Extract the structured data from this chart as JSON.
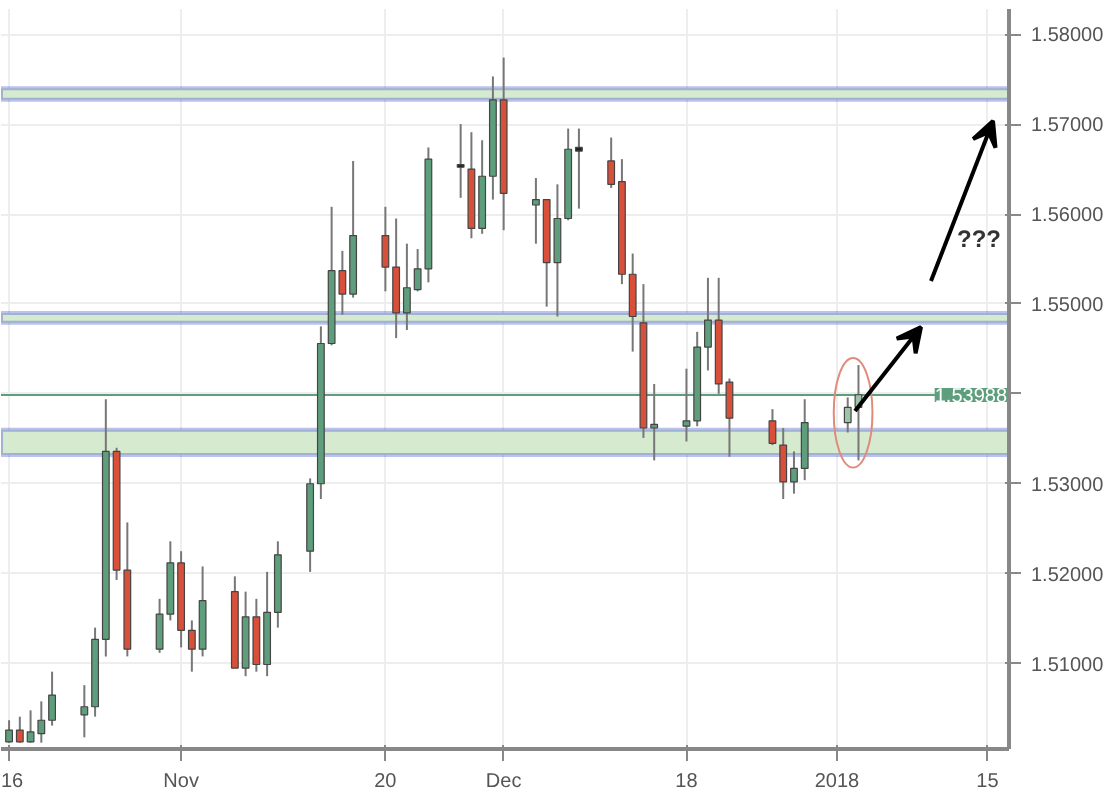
{
  "chart_data": {
    "type": "candlestick",
    "x": [
      "2017-10-16",
      "2017-10-17",
      "2017-10-18",
      "2017-10-19",
      "2017-10-20",
      "2017-10-23",
      "2017-10-24",
      "2017-10-25",
      "2017-10-26",
      "2017-10-27",
      "2017-10-30",
      "2017-10-31",
      "2017-11-01",
      "2017-11-02",
      "2017-11-03",
      "2017-11-06",
      "2017-11-07",
      "2017-11-08",
      "2017-11-09",
      "2017-11-10",
      "2017-11-13",
      "2017-11-14",
      "2017-11-15",
      "2017-11-16",
      "2017-11-17",
      "2017-11-20",
      "2017-11-21",
      "2017-11-22",
      "2017-11-23",
      "2017-11-24",
      "2017-11-27",
      "2017-11-28",
      "2017-11-29",
      "2017-11-30",
      "2017-12-01",
      "2017-12-04",
      "2017-12-05",
      "2017-12-06",
      "2017-12-07",
      "2017-12-08",
      "2017-12-11",
      "2017-12-12",
      "2017-12-13",
      "2017-12-14",
      "2017-12-15",
      "2017-12-18",
      "2017-12-19",
      "2017-12-20",
      "2017-12-21",
      "2017-12-22",
      "2017-12-26",
      "2017-12-27",
      "2017-12-28",
      "2017-12-29",
      "2018-01-02",
      "2018-01-03"
    ],
    "ohlc": [
      [
        1.5013,
        1.5037,
        1.5012,
        1.5026
      ],
      [
        1.5026,
        1.5041,
        1.5012,
        1.5013
      ],
      [
        1.5013,
        1.5048,
        1.5012,
        1.5024
      ],
      [
        1.5022,
        1.5058,
        1.5012,
        1.5037
      ],
      [
        1.5037,
        1.5091,
        1.5031,
        1.5065
      ],
      [
        1.5043,
        1.5076,
        1.5018,
        1.5052
      ],
      [
        1.5052,
        1.514,
        1.5041,
        1.5127
      ],
      [
        1.5127,
        1.5394,
        1.5108,
        1.5336
      ],
      [
        1.5336,
        1.534,
        1.5193,
        1.5204
      ],
      [
        1.5204,
        1.5257,
        1.5108,
        1.5116
      ],
      [
        1.5116,
        1.5172,
        1.5112,
        1.5155
      ],
      [
        1.5155,
        1.5236,
        1.5148,
        1.5212
      ],
      [
        1.5212,
        1.5225,
        1.5118,
        1.5137
      ],
      [
        1.5137,
        1.5148,
        1.5091,
        1.5116
      ],
      [
        1.5116,
        1.5208,
        1.5108,
        1.517
      ],
      [
        1.518,
        1.5197,
        1.5095,
        1.5095
      ],
      [
        1.5095,
        1.518,
        1.5086,
        1.5152
      ],
      [
        1.5152,
        1.5172,
        1.5091,
        1.5099
      ],
      [
        1.5099,
        1.5202,
        1.5086,
        1.5157
      ],
      [
        1.5157,
        1.5236,
        1.514,
        1.5221
      ],
      [
        1.5225,
        1.5306,
        1.5202,
        1.53
      ],
      [
        1.53,
        1.5475,
        1.5283,
        1.5456
      ],
      [
        1.5456,
        1.5608,
        1.5454,
        1.5537
      ],
      [
        1.5537,
        1.5559,
        1.5488,
        1.5511
      ],
      [
        1.5511,
        1.5659,
        1.5507,
        1.5576
      ],
      [
        1.5576,
        1.5608,
        1.5514,
        1.5541
      ],
      [
        1.5541,
        1.5595,
        1.5462,
        1.549
      ],
      [
        1.549,
        1.5567,
        1.5471,
        1.5518
      ],
      [
        1.5516,
        1.5561,
        1.5514,
        1.5539
      ],
      [
        1.5539,
        1.5674,
        1.5524,
        1.5661
      ],
      [
        1.5655,
        1.57,
        1.5618,
        1.5652
      ],
      [
        1.565,
        1.5691,
        1.5573,
        1.5584
      ],
      [
        1.5584,
        1.5682,
        1.5578,
        1.5642
      ],
      [
        1.5642,
        1.5753,
        1.5616,
        1.5727
      ],
      [
        1.5727,
        1.5774,
        1.5582,
        1.5623
      ],
      [
        1.561,
        1.564,
        1.5567,
        1.5616
      ],
      [
        1.5616,
        1.5616,
        1.5497,
        1.5546
      ],
      [
        1.5546,
        1.5633,
        1.5486,
        1.5595
      ],
      [
        1.5595,
        1.5695,
        1.5593,
        1.5672
      ],
      [
        1.5674,
        1.5695,
        1.5606,
        1.567
      ],
      [
        1.5659,
        1.5685,
        1.5629,
        1.5633
      ],
      [
        1.5636,
        1.5661,
        1.5522,
        1.5533
      ],
      [
        1.5533,
        1.5556,
        1.5447,
        1.5486
      ],
      [
        1.5479,
        1.5522,
        1.5351,
        1.5362
      ],
      [
        1.5362,
        1.5411,
        1.5326,
        1.5366
      ],
      [
        1.5364,
        1.5428,
        1.5347,
        1.537
      ],
      [
        1.537,
        1.5469,
        1.5364,
        1.5452
      ],
      [
        1.5452,
        1.5529,
        1.5426,
        1.5482
      ],
      [
        1.5482,
        1.5529,
        1.54,
        1.5411
      ],
      [
        1.5413,
        1.5417,
        1.533,
        1.5373
      ],
      [
        1.537,
        1.5383,
        1.5343,
        1.5345
      ],
      [
        1.5343,
        1.5362,
        1.5283,
        1.5302
      ],
      [
        1.5302,
        1.5336,
        1.5289,
        1.5317
      ],
      [
        1.5317,
        1.5394,
        1.5304,
        1.5368
      ],
      [
        1.5368,
        1.5396,
        1.5357,
        1.5385
      ],
      [
        1.5385,
        1.5432,
        1.5326,
        1.5399
      ]
    ],
    "colors": [
      "#5f9e7c",
      "#d9503a",
      "#5f9e7c",
      "#5f9e7c",
      "#5f9e7c",
      "#5f9e7c",
      "#5f9e7c",
      "#5f9e7c",
      "#d9503a",
      "#d9503a",
      "#5f9e7c",
      "#5f9e7c",
      "#d9503a",
      "#d9503a",
      "#5f9e7c",
      "#d9503a",
      "#5f9e7c",
      "#d9503a",
      "#5f9e7c",
      "#5f9e7c",
      "#5f9e7c",
      "#5f9e7c",
      "#5f9e7c",
      "#d9503a",
      "#5f9e7c",
      "#d9503a",
      "#d9503a",
      "#5f9e7c",
      "#5f9e7c",
      "#5f9e7c",
      "#222222",
      "#d9503a",
      "#5f9e7c",
      "#5f9e7c",
      "#d9503a",
      "#5f9e7c",
      "#d9503a",
      "#5f9e7c",
      "#5f9e7c",
      "#222222",
      "#d9503a",
      "#d9503a",
      "#d9503a",
      "#d9503a",
      "#5f9e7c",
      "#5f9e7c",
      "#5f9e7c",
      "#5f9e7c",
      "#d9503a",
      "#d9503a",
      "#d9503a",
      "#d9503a",
      "#5f9e7c",
      "#5f9e7c",
      "#9cc4a8",
      "#9cc4a8"
    ],
    "xlim": [
      "2017-10-15T06:00",
      "2018-01-17"
    ],
    "xticks": [
      {
        "value": "2017-10-16",
        "label": "16"
      },
      {
        "value": "2017-11-01",
        "label": "Nov"
      },
      {
        "value": "2017-11-20",
        "label": "20"
      },
      {
        "value": "2017-12-01",
        "label": "Dec"
      },
      {
        "value": "2017-12-18",
        "label": "18"
      },
      {
        "value": "2018-01-01",
        "label": "2018"
      },
      {
        "value": "2018-01-15",
        "label": "15"
      }
    ],
    "ylim": [
      1.5005,
      1.5828
    ],
    "yticks": [
      {
        "value": 1.51,
        "label": "1.51000"
      },
      {
        "value": 1.52,
        "label": "1.52000"
      },
      {
        "value": 1.53,
        "label": "1.53000"
      },
      {
        "value": 1.54,
        "label": null
      },
      {
        "value": 1.55,
        "label": "1.55000"
      },
      {
        "value": 1.56,
        "label": "1.56000"
      },
      {
        "value": 1.57,
        "label": "1.57000"
      },
      {
        "value": 1.58,
        "label": "1.58000"
      }
    ],
    "grid": true,
    "ref_lines": [
      {
        "axis": "y",
        "value": 1.53988,
        "label": "1.53988",
        "color": "#5f9e7c"
      }
    ],
    "bands": [
      {
        "axis": "y",
        "from": 1.5727,
        "to": 1.574,
        "color": "#d6ead0"
      },
      {
        "axis": "y",
        "from": 1.5479,
        "to": 1.549,
        "color": "#d6ead0"
      },
      {
        "axis": "y",
        "from": 1.5332,
        "to": 1.536,
        "color": "#d6ead0"
      }
    ],
    "annotations": [
      "???"
    ]
  }
}
